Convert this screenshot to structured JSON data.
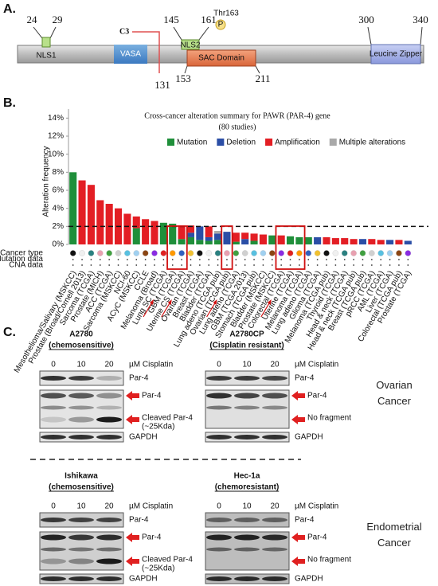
{
  "panel_a": {
    "label": "A.",
    "residues": {
      "nls1_start": 24,
      "nls1_end": 29,
      "nls2_start": 145,
      "nls2_end": 161,
      "lz_start": 300,
      "lz_end": 340,
      "c3_site": 131,
      "sac_start": 153,
      "sac_end": 211
    },
    "domains": {
      "nls1": "NLS1",
      "vasa": "VASA",
      "c3": "C3",
      "nls2": "NLS2",
      "phospho_site": "Thr163",
      "phospho": "P",
      "sac": "SAC Domain",
      "lz": "Leucine Zipper"
    }
  },
  "panel_b_label": "B.",
  "chart_data": {
    "type": "bar",
    "stacked": true,
    "title": "Cross-cancer alteration summary for PAWR (PAR-4) gene",
    "subtitle": "(80 studies)",
    "y_label": "Alteration frequency",
    "row_labels": [
      "Cancer type",
      "Mutation data",
      "CNA data"
    ],
    "categories": [
      "Mesothelioma/Salivary (MSKCC)",
      "Prostate (Broad/Cornell 2013)",
      "Sarcoma (TCGA)",
      "Prostate (MICH)",
      "ACC (TCGA)",
      "Sarcoma (MSKCC)",
      "NCI-60",
      "ACyC (MSKCC)",
      "CCLE",
      "Melanoma (Broad)",
      "Lung SC (TCGA)",
      "GBM (TCGA)",
      "Uterine CS (TCGA)",
      "Ovarian (TCGA)",
      "Breast (TCGA)",
      "Bladder (TCGA)",
      "Lung adeno (TCGA pub)",
      "Ovarian (TCGA pub)",
      "Lung adeno (TCGA)",
      "GBM (TCGA 2013)",
      "Stomach (TCGA pub)",
      "Bladder (MSKCC)",
      "Prostate (MSKCC)",
      "Colorectal (TCGA)",
      "Uterine (TCGA)",
      "Melanoma (TCGA)",
      "Lung adeno (TCGA)",
      "Glioma (TCGA)",
      "Melanoma (TCGA pub)",
      "Thyroid (TCGA)",
      "Head & neck (TCGA)",
      "Head & neck (TCGA pub)",
      "Breast (TCGA pub)",
      "pRCC (TCGA)",
      "AML (TCGA)",
      "Liver (TCGA)",
      "Colorectal (TCGA pub)",
      "Prostate (TCGA)"
    ],
    "series": [
      {
        "name": "Mutation",
        "color": "#1f8f3a",
        "values": [
          8.0,
          0,
          0,
          0,
          0,
          0,
          0,
          1.8,
          0,
          0,
          2.4,
          2.3,
          0.6,
          0.8,
          0.5,
          0.4,
          0.5,
          0,
          0.3,
          0,
          0.4,
          0,
          1.0,
          0,
          0.9,
          0.8,
          0.8,
          0,
          0,
          0,
          0,
          0,
          0,
          0,
          0,
          0,
          0,
          0
        ]
      },
      {
        "name": "Deletion",
        "color": "#2b4ea6",
        "values": [
          0,
          0,
          0,
          0,
          0,
          0,
          0,
          0,
          0,
          0,
          0,
          0,
          0,
          0.5,
          1.5,
          0.4,
          0.7,
          1.4,
          0,
          0.6,
          0,
          0,
          0,
          0,
          0,
          0,
          0,
          0.8,
          0,
          0,
          0,
          0,
          0.6,
          0,
          0,
          0.5,
          0,
          0.4
        ]
      },
      {
        "name": "Amplification",
        "color": "#e31e24",
        "values": [
          0,
          7.1,
          6.6,
          4.9,
          4.5,
          4.0,
          3.4,
          1.3,
          2.8,
          2.6,
          0,
          0,
          1.5,
          0.8,
          0,
          1.2,
          0,
          0,
          1.0,
          0.7,
          0.8,
          1.1,
          0,
          1.0,
          0,
          0,
          0,
          0,
          0.8,
          0.7,
          0.7,
          0.6,
          0,
          0.6,
          0.5,
          0,
          0.5,
          0
        ]
      },
      {
        "name": "Multiple alterations",
        "color": "#a9a9a9",
        "values": [
          0,
          0,
          0,
          0,
          0,
          0,
          0,
          0,
          0,
          0,
          0,
          0,
          0,
          0,
          0,
          0,
          0.3,
          0,
          0,
          0,
          0,
          0,
          0,
          0,
          0,
          0,
          0,
          0,
          0,
          0,
          0,
          0,
          0,
          0,
          0,
          0,
          0,
          0
        ]
      }
    ],
    "ylim": [
      0,
      15
    ],
    "yticks": [
      {
        "value": 0,
        "label": "0%"
      },
      {
        "value": 2,
        "label": "2%"
      },
      {
        "value": 4,
        "label": "4%"
      },
      {
        "value": 6,
        "label": "6%"
      },
      {
        "value": 8,
        "label": "8%"
      },
      {
        "value": 10,
        "label": "10%"
      },
      {
        "value": 12,
        "label": "12%"
      },
      {
        "value": 14,
        "label": "14%"
      }
    ],
    "reference_line": 2,
    "grid": false
  },
  "panel_c": {
    "label": "C.",
    "groups": [
      "Ovarian Cancer",
      "Endometrial Cancer"
    ],
    "blots": [
      {
        "cell_line": "A2780",
        "note": "(chemosensitive)",
        "doses": [
          0,
          10,
          20
        ],
        "unit": "µM Cisplatin",
        "short": "Par-4",
        "long": "Par-4",
        "fragment": "Cleaved Par-4",
        "fragment_note": "(~25Kda)",
        "loading": "GAPDH"
      },
      {
        "cell_line": "A2780CP",
        "note": "(Cisplatin resistant)",
        "doses": [
          0,
          10,
          20
        ],
        "unit": "µM Cisplatin",
        "short": "Par-4",
        "long": "Par-4",
        "fragment": "No fragment",
        "loading": "GAPDH"
      },
      {
        "cell_line": "Ishikawa",
        "note": "(chemosensitive)",
        "doses": [
          0,
          10,
          20
        ],
        "unit": "µM Cisplatin",
        "short": "Par-4",
        "long": "Par-4",
        "fragment": "Cleaved Par-4",
        "fragment_note": "(~25Kda)",
        "loading": "GAPDH"
      },
      {
        "cell_line": "Hec-1a",
        "note": "(chemoresistant)",
        "doses": [
          0,
          10,
          20
        ],
        "unit": "µM Cisplatin",
        "short": "Par-4",
        "long": "Par-4",
        "fragment": "No fragment",
        "loading": "GAPDH"
      }
    ]
  }
}
